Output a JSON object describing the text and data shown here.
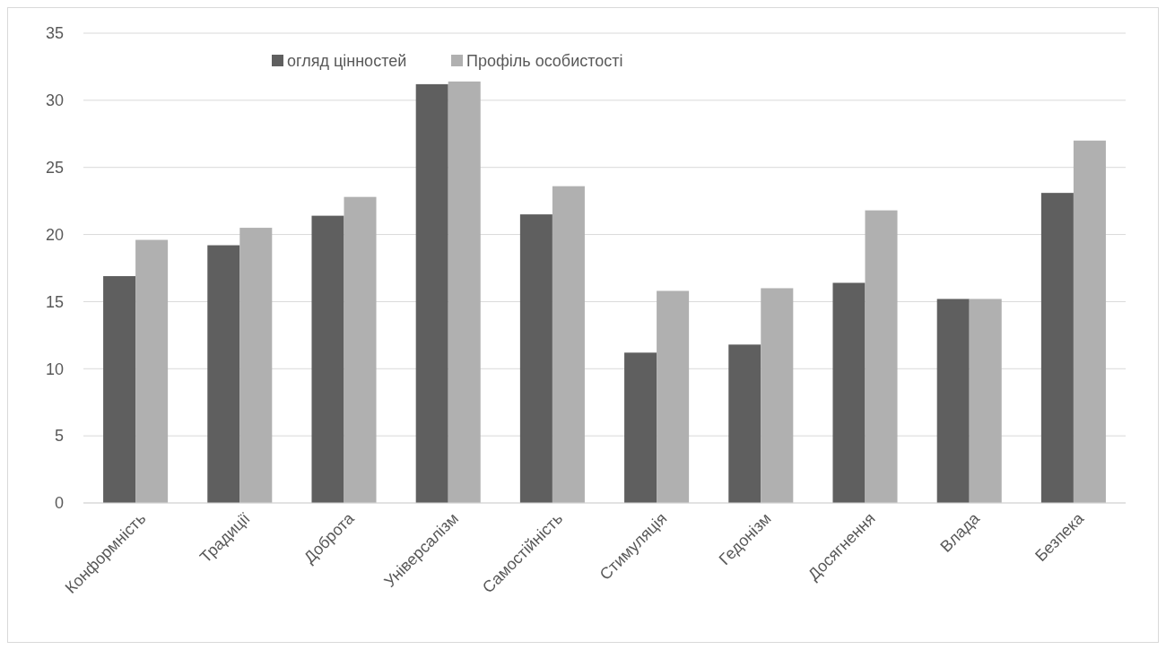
{
  "chart_data": {
    "type": "bar",
    "categories": [
      "Конформність",
      "Традиції",
      "Доброта",
      "Універсалізм",
      "Самостійність",
      "Стимуляція",
      "Гедонізм",
      "Досягнення",
      "Влада",
      "Безпека"
    ],
    "series": [
      {
        "name": "огляд цінностей",
        "color": "#5f5f5f",
        "values": [
          16.9,
          19.2,
          21.4,
          31.2,
          21.5,
          11.2,
          11.8,
          16.4,
          15.2,
          23.1
        ]
      },
      {
        "name": "Профіль особистості",
        "color": "#b0b0b0",
        "values": [
          19.6,
          20.5,
          22.8,
          31.4,
          23.6,
          15.8,
          16.0,
          21.8,
          15.2,
          27.0
        ]
      }
    ],
    "ylim": [
      0,
      35
    ],
    "yticks": [
      0,
      5,
      10,
      15,
      20,
      25,
      30,
      35
    ],
    "grid": "y",
    "legend": "top"
  }
}
